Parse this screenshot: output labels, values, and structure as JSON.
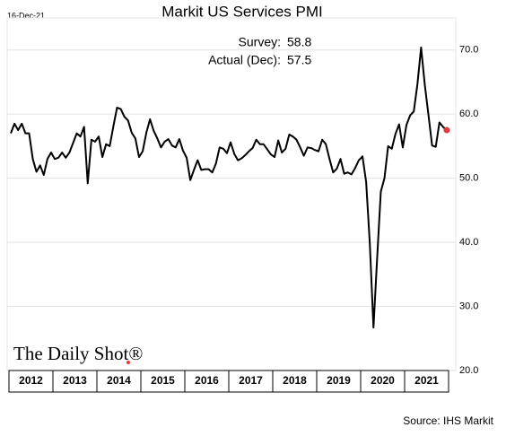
{
  "date": "16-Dec-21",
  "chart_data": {
    "type": "line",
    "title": "Markit US Services PMI",
    "annotations": [
      {
        "label": "Survey:",
        "value": 58.8
      },
      {
        "label": "Actual (Dec):",
        "value": 57.5
      }
    ],
    "x_labels": [
      "2012",
      "2013",
      "2014",
      "2015",
      "2016",
      "2017",
      "2018",
      "2019",
      "2020",
      "2021"
    ],
    "values": [
      57,
      58.5,
      57.5,
      58.5,
      57,
      57,
      53,
      51,
      52,
      50.5,
      53,
      54,
      53,
      53.2,
      54,
      53.2,
      54,
      55.5,
      57,
      56.5,
      58,
      49.2,
      56,
      55.7,
      56.5,
      53.3,
      55.3,
      55,
      58.1,
      61,
      60.8,
      59.6,
      59,
      57.1,
      56.2,
      53.3,
      54.2,
      57.1,
      59.2,
      57.4,
      56.2,
      54.8,
      55.7,
      56.1,
      55.1,
      54.8,
      56.1,
      54.3,
      53.2,
      49.7,
      51.3,
      52.8,
      51.3,
      51.4,
      51.4,
      50.9,
      52.3,
      54.8,
      54.6,
      53.9,
      55.6,
      53.8,
      52.8,
      53.1,
      53.6,
      54.2,
      54.7,
      56,
      55.3,
      55.3,
      54.5,
      53.7,
      53.3,
      55.9,
      54,
      54.6,
      56.8,
      56.5,
      56,
      54.8,
      53.5,
      54.8,
      54.7,
      54.4,
      54.2,
      56,
      55.3,
      53,
      50.9,
      51.5,
      53,
      50.7,
      50.9,
      50.6,
      51.6,
      52.8,
      53.4,
      49.4,
      39.8,
      26.7,
      37.5,
      47.9,
      50,
      55,
      54.6,
      56.9,
      58.4,
      54.8,
      58.3,
      59.8,
      60.4,
      64.7,
      70.4,
      64.6,
      59.9,
      55.1,
      54.9,
      58.7,
      58,
      57.5
    ],
    "color": "#000000",
    "last_point_color": "#e03a3a",
    "ylim": [
      20,
      75
    ],
    "yticks": [
      {
        "value": 20,
        "label": "20.0"
      },
      {
        "value": 30,
        "label": "30.0"
      },
      {
        "value": 40,
        "label": "40.0"
      },
      {
        "value": 50,
        "label": "50.0"
      },
      {
        "value": 60,
        "label": "60.0"
      },
      {
        "value": 70,
        "label": "70.0"
      }
    ],
    "grid": true
  },
  "logo": "The Daily Shot®",
  "source": "Source: IHS Markit"
}
